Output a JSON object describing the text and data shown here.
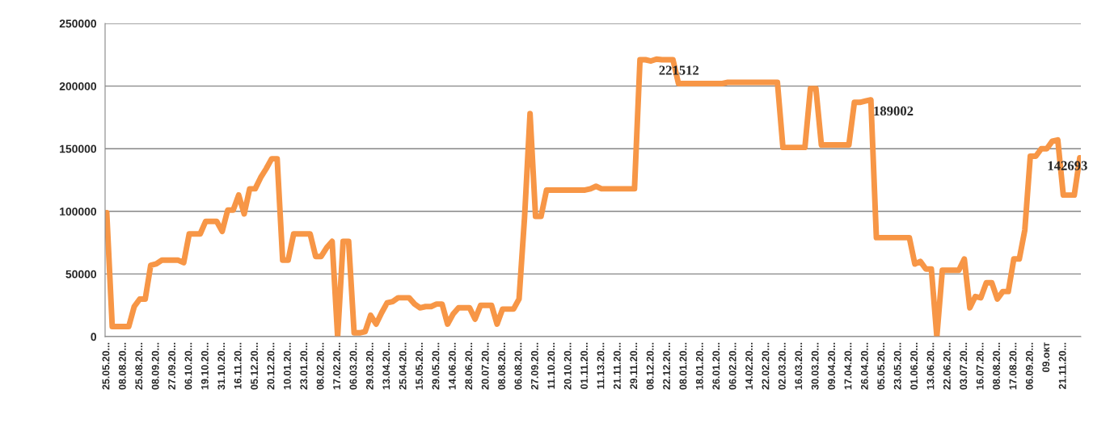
{
  "chart_data": {
    "type": "line",
    "categories": [
      "25.05.20...",
      null,
      null,
      "08.08.20...",
      null,
      null,
      "25.08.20...",
      null,
      null,
      "08.09.20...",
      null,
      null,
      "27.09.20...",
      null,
      null,
      "06.10.20...",
      null,
      null,
      "19.10.20...",
      null,
      null,
      "31.10.20...",
      null,
      null,
      "16.11.20...",
      null,
      null,
      "05.12.20...",
      null,
      null,
      "20.12.20...",
      null,
      null,
      "10.01.20...",
      null,
      null,
      "23.01.20...",
      null,
      null,
      "08.02.20...",
      null,
      null,
      "17.02.20...",
      null,
      null,
      "06.03.20...",
      null,
      null,
      "29.03.20...",
      null,
      null,
      "13.04.20...",
      null,
      null,
      "25.04.20...",
      null,
      null,
      "15.05.20...",
      null,
      null,
      "29.05.20...",
      null,
      null,
      "14.06.20...",
      null,
      null,
      "28.06.20...",
      null,
      null,
      "20.07.20...",
      null,
      null,
      "08.08.20...",
      null,
      null,
      "06.08.20...",
      null,
      null,
      "27.09.20...",
      null,
      null,
      "11.10.20...",
      null,
      null,
      "20.10.20...",
      null,
      null,
      "01.11.20...",
      null,
      null,
      "11.13.20...",
      null,
      null,
      "21.11.20...",
      null,
      null,
      "29.11.20...",
      null,
      null,
      "08.12.20...",
      null,
      null,
      "22.12.20...",
      null,
      null,
      "08.01.20...",
      null,
      null,
      "18.01.20...",
      null,
      null,
      "26.01.20...",
      null,
      null,
      "06.02.20...",
      null,
      null,
      "14.02.20...",
      null,
      null,
      "22.02.20...",
      null,
      null,
      "02.03.20...",
      null,
      null,
      "16.03.20...",
      null,
      null,
      "30.03.20...",
      null,
      null,
      "09.04.20...",
      null,
      null,
      "17.04.20...",
      null,
      null,
      "26.04.20...",
      null,
      null,
      "05.05.20...",
      null,
      null,
      "23.05.20...",
      null,
      null,
      "01.06.20...",
      null,
      null,
      "13.06.20...",
      null,
      null,
      "22.06.20...",
      null,
      null,
      "03.07.20...",
      null,
      null,
      "16.07.20...",
      null,
      null,
      "08.08.20...",
      null,
      null,
      "17.08.20...",
      null,
      null,
      "06.09.20...",
      null,
      null,
      "09.окт",
      null,
      null,
      "21.11.20...",
      null,
      null,
      null
    ],
    "series": [
      {
        "color": "#f79646",
        "values": [
          99000,
          8000,
          8000,
          8000,
          8000,
          24000,
          30000,
          30000,
          57000,
          58000,
          61000,
          61000,
          61000,
          61000,
          59000,
          82000,
          82000,
          82000,
          92000,
          92000,
          92000,
          84000,
          101000,
          101000,
          113000,
          98000,
          118000,
          118000,
          127000,
          134000,
          142000,
          142000,
          61000,
          61000,
          82000,
          82000,
          82000,
          82000,
          64000,
          64000,
          71000,
          76000,
          0,
          76000,
          76000,
          3000,
          3000,
          4000,
          17000,
          10000,
          19000,
          27000,
          28000,
          31000,
          31000,
          31000,
          26000,
          23000,
          24000,
          24000,
          26000,
          26000,
          10000,
          18000,
          23000,
          23000,
          23000,
          14000,
          25000,
          25000,
          25000,
          10000,
          22000,
          22000,
          22000,
          30000,
          95000,
          178000,
          96000,
          96000,
          117000,
          117000,
          117000,
          117000,
          117000,
          117000,
          117000,
          117000,
          118000,
          120000,
          118000,
          118000,
          118000,
          118000,
          118000,
          118000,
          118000,
          221000,
          221000,
          220000,
          221512,
          221000,
          221000,
          221000,
          202000,
          202000,
          202000,
          202000,
          202000,
          202000,
          202000,
          202000,
          202000,
          203000,
          203000,
          203000,
          203000,
          203000,
          203000,
          203000,
          203000,
          203000,
          203000,
          151000,
          151000,
          151000,
          151000,
          151000,
          198000,
          198000,
          153000,
          153000,
          153000,
          153000,
          153000,
          153000,
          187000,
          187000,
          188000,
          189002,
          79000,
          79000,
          79000,
          79000,
          79000,
          79000,
          79000,
          58000,
          60000,
          54000,
          54000,
          0,
          53000,
          53000,
          53000,
          53000,
          62000,
          23000,
          32000,
          31000,
          43000,
          43000,
          30000,
          36000,
          36000,
          62000,
          62000,
          85000,
          144000,
          144000,
          150000,
          150000,
          156000,
          157000,
          113000,
          113000,
          113000,
          142693
        ],
        "value_labels": [
          null,
          null,
          null,
          null,
          null,
          null,
          null,
          null,
          null,
          null,
          null,
          null,
          null,
          null,
          null,
          null,
          null,
          null,
          null,
          null,
          null,
          null,
          null,
          null,
          null,
          null,
          null,
          null,
          null,
          null,
          null,
          null,
          null,
          null,
          null,
          null,
          null,
          null,
          null,
          null,
          null,
          null,
          null,
          null,
          null,
          null,
          null,
          null,
          null,
          null,
          null,
          null,
          null,
          null,
          null,
          null,
          null,
          null,
          null,
          null,
          null,
          null,
          null,
          null,
          null,
          null,
          null,
          null,
          null,
          null,
          null,
          null,
          null,
          null,
          null,
          null,
          null,
          null,
          null,
          null,
          null,
          null,
          null,
          null,
          null,
          null,
          null,
          null,
          null,
          null,
          null,
          null,
          null,
          null,
          null,
          null,
          null,
          null,
          null,
          null,
          "221512",
          null,
          null,
          null,
          null,
          null,
          null,
          null,
          null,
          null,
          null,
          null,
          null,
          null,
          null,
          null,
          null,
          null,
          null,
          null,
          null,
          null,
          null,
          null,
          null,
          null,
          null,
          null,
          null,
          null,
          null,
          null,
          null,
          null,
          null,
          null,
          null,
          null,
          null,
          "189002",
          null,
          null,
          null,
          null,
          null,
          null,
          null,
          null,
          null,
          null,
          null,
          null,
          null,
          null,
          null,
          null,
          null,
          null,
          null,
          null,
          null,
          null,
          null,
          null,
          null,
          null,
          null,
          null,
          null,
          null,
          null,
          null,
          null,
          null,
          null,
          null,
          null,
          "142693"
        ]
      }
    ],
    "ylim": [
      0,
      250000
    ],
    "yticks": [
      0,
      50000,
      100000,
      150000,
      200000,
      250000
    ],
    "grid": "y",
    "marker": "none",
    "line_style": "solid"
  }
}
